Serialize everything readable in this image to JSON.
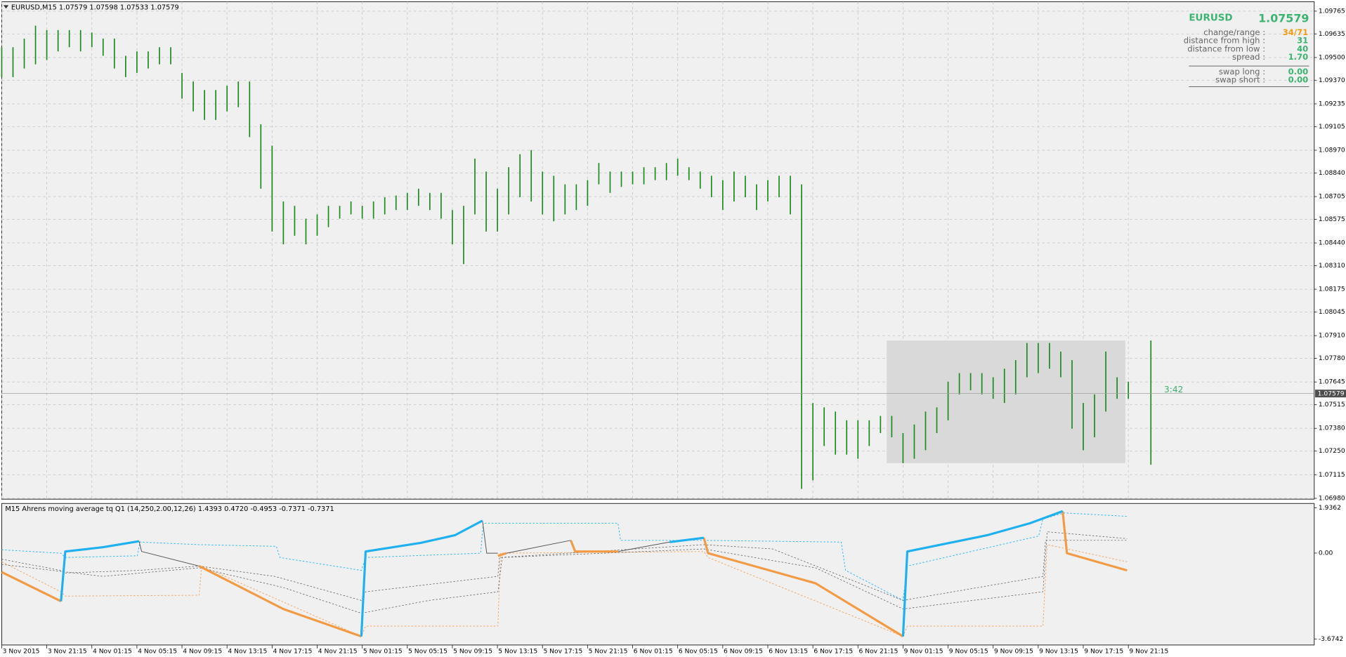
{
  "chart_data": [
    {
      "type": "ohlc",
      "title": "EURUSD,M15  1.07579 1.07598 1.07533 1.07579",
      "color": "#1f8a1f",
      "grid": true,
      "xlim": [
        0,
        116.5
      ],
      "ylim": [
        1.06975,
        1.09819
      ],
      "yticks": [
        1.09765,
        1.09635,
        {
          "value": 1.095,
          "label": "1.09500"
        },
        {
          "value": 1.0937,
          "label": "1.09370"
        },
        1.09235,
        1.09105,
        {
          "value": 1.0897,
          "label": "1.08970"
        },
        {
          "value": 1.0884,
          "label": "1.08840"
        },
        1.08705,
        1.08575,
        {
          "value": 1.0844,
          "label": "1.08440"
        },
        {
          "value": 1.0831,
          "label": "1.08310"
        },
        1.08175,
        1.08045,
        {
          "value": 1.0791,
          "label": "1.07910"
        },
        {
          "value": 1.0778,
          "label": "1.07780"
        },
        1.07645,
        1.07515,
        {
          "value": 1.0738,
          "label": "1.07380"
        },
        {
          "value": 1.0725,
          "label": "1.07250"
        },
        1.07115,
        {
          "value": 1.0698,
          "label": "1.06980"
        }
      ],
      "x": [
        0,
        1,
        2,
        3,
        4,
        5,
        6,
        7,
        8,
        9,
        10,
        11,
        12,
        13,
        14,
        15,
        16,
        17,
        18,
        19,
        20,
        21,
        22,
        23,
        24,
        25,
        26,
        27,
        28,
        29,
        30,
        31,
        32,
        33,
        34,
        35,
        36,
        37,
        38,
        39,
        40,
        41,
        42,
        43,
        44,
        45,
        46,
        47,
        48,
        49,
        50,
        51,
        52,
        53,
        54,
        55,
        56,
        57,
        58,
        59,
        60,
        61,
        62,
        63,
        64,
        65,
        66,
        67,
        68,
        69,
        70,
        71,
        72,
        73,
        74,
        75,
        76,
        77,
        78,
        79,
        80,
        81,
        82,
        83,
        84,
        85,
        86,
        87,
        88,
        89,
        90,
        91,
        92,
        93,
        94,
        95,
        96,
        97,
        98,
        99,
        100,
        102
      ],
      "high": [
        1.09559,
        1.09559,
        1.09608,
        1.09682,
        1.09657,
        1.09657,
        1.09657,
        1.09657,
        1.09643,
        1.09608,
        1.09608,
        1.0951,
        1.09535,
        1.09535,
        1.09559,
        1.09559,
        1.09412,
        1.09363,
        1.09314,
        1.09314,
        1.09339,
        1.09363,
        1.09363,
        1.09118,
        1.08996,
        1.08677,
        1.08652,
        1.08579,
        1.08603,
        1.08652,
        1.08652,
        1.08677,
        1.08652,
        1.08677,
        1.08701,
        1.08711,
        1.08726,
        1.0875,
        1.08726,
        1.08726,
        1.08628,
        1.08652,
        1.08922,
        1.08848,
        1.0875,
        1.08873,
        1.08947,
        1.08971,
        1.08848,
        1.08824,
        1.08775,
        1.08775,
        1.08799,
        1.08897,
        1.08848,
        1.08848,
        1.08848,
        1.08873,
        1.08873,
        1.08897,
        1.08922,
        1.08873,
        1.08848,
        1.08824,
        1.08799,
        1.08848,
        1.08824,
        1.08775,
        1.08799,
        1.08824,
        1.08824,
        1.08775,
        1.07525,
        1.075,
        1.07476,
        1.07426,
        1.07426,
        1.07426,
        1.07451,
        1.07451,
        1.07353,
        1.07402,
        1.07476,
        1.075,
        1.07647,
        1.07696,
        1.07696,
        1.07696,
        1.07672,
        1.07721,
        1.0777,
        1.07868,
        1.07868,
        1.07868,
        1.07819,
        1.0777,
        1.07525,
        1.07574,
        1.07819,
        1.07672,
        1.07647,
        1.07882
      ],
      "low": [
        1.09388,
        1.09388,
        1.09437,
        1.09461,
        1.09486,
        1.09535,
        1.09559,
        1.09535,
        1.09559,
        1.0951,
        1.09437,
        1.09388,
        1.09412,
        1.09437,
        1.09461,
        1.09461,
        1.09265,
        1.09192,
        1.09143,
        1.09143,
        1.09192,
        1.09216,
        1.09045,
        1.0875,
        1.08505,
        1.08432,
        1.08481,
        1.08432,
        1.08481,
        1.0853,
        1.08579,
        1.08603,
        1.08579,
        1.08579,
        1.08603,
        1.08628,
        1.08628,
        1.08652,
        1.08628,
        1.08579,
        1.08432,
        1.08319,
        1.08603,
        1.08505,
        1.08505,
        1.08603,
        1.08701,
        1.08677,
        1.08603,
        1.08564,
        1.08603,
        1.08628,
        1.08652,
        1.08775,
        1.08726,
        1.0876,
        1.08775,
        1.08775,
        1.08799,
        1.08799,
        1.08824,
        1.08799,
        1.0875,
        1.08701,
        1.08628,
        1.08677,
        1.08701,
        1.08628,
        1.08677,
        1.08701,
        1.08603,
        1.07034,
        1.07083,
        1.07279,
        1.0723,
        1.0723,
        1.07206,
        1.07279,
        1.07353,
        1.07329,
        1.07181,
        1.07206,
        1.07255,
        1.07353,
        1.07426,
        1.07574,
        1.07598,
        1.07574,
        1.07549,
        1.07525,
        1.07574,
        1.07672,
        1.07696,
        1.07721,
        1.07672,
        1.07378,
        1.07255,
        1.07329,
        1.07476,
        1.07549,
        1.07549,
        1.07172
      ],
      "current_price": 1.07579,
      "timer": "3:42",
      "highlight": {
        "xlim": [
          78.55,
          99.73
        ],
        "ylim": [
          1.07181,
          1.07882
        ],
        "color": "#d9d9d9"
      }
    },
    {
      "type": "line",
      "title": "M15 Ahrens moving average tq Q1 (14,250,2.00,12,26) 1.4393 0.4720 -0.4953 -0.7371 -0.7371",
      "xlim": [
        0,
        116.5
      ],
      "ylim": [
        -3.931,
        2.1196
      ],
      "yticks": [
        1.9362,
        {
          "value": 0,
          "label": "0.00"
        },
        -3.6742
      ],
      "xticks": [
        {
          "value": 0,
          "label": "3 Nov 2015"
        },
        {
          "value": 4,
          "label": "3 Nov 21:15"
        },
        {
          "value": 8,
          "label": "4 Nov 01:15"
        },
        {
          "value": 12,
          "label": "4 Nov 05:15"
        },
        {
          "value": 16,
          "label": "4 Nov 09:15"
        },
        {
          "value": 20,
          "label": "4 Nov 13:15"
        },
        {
          "value": 24,
          "label": "4 Nov 17:15"
        },
        {
          "value": 28,
          "label": "4 Nov 21:15"
        },
        {
          "value": 32,
          "label": "5 Nov 01:15"
        },
        {
          "value": 36,
          "label": "5 Nov 05:15"
        },
        {
          "value": 40,
          "label": "5 Nov 09:15"
        },
        {
          "value": 44,
          "label": "5 Nov 13:15"
        },
        {
          "value": 48,
          "label": "5 Nov 17:15"
        },
        {
          "value": 52,
          "label": "5 Nov 21:15"
        },
        {
          "value": 56,
          "label": "6 Nov 01:15"
        },
        {
          "value": 60,
          "label": "6 Nov 05:15"
        },
        {
          "value": 64,
          "label": "6 Nov 09:15"
        },
        {
          "value": 68,
          "label": "6 Nov 13:15"
        },
        {
          "value": 72,
          "label": "6 Nov 17:15"
        },
        {
          "value": 76,
          "label": "6 Nov 21:15"
        },
        {
          "value": 80,
          "label": "9 Nov 01:15"
        },
        {
          "value": 84,
          "label": "9 Nov 05:15"
        },
        {
          "value": 88,
          "label": "9 Nov 09:15"
        },
        {
          "value": 92,
          "label": "9 Nov 13:15"
        },
        {
          "value": 96,
          "label": "9 Nov 17:15"
        },
        {
          "value": 100,
          "label": "9 Nov 21:15"
        }
      ],
      "series": [
        {
          "color": "#29b6f6",
          "width": 0.8,
          "dashed": true,
          "x": [
            0,
            5.26,
            5.64,
            12.04,
            12.27,
            17.52,
            24.38,
            24.69,
            31.92,
            32.3,
            42.51,
            42.74,
            54.7,
            54.93,
            62.32,
            74.51,
            74.9,
            80.0,
            80.38,
            92.04,
            92.42,
            94.32,
            99.89
          ],
          "values": [
            0.139,
            -0.007,
            -0.191,
            -0.117,
            0.469,
            0.359,
            0.286,
            -0.191,
            -0.741,
            -0.191,
            -0.007,
            1.276,
            1.276,
            0.543,
            0.543,
            0.469,
            -0.741,
            -2.024,
            -0.557,
            0.726,
            1.459,
            1.716,
            1.569
          ]
        },
        {
          "color": "#f4a460",
          "width": 0.8,
          "dashed": true,
          "x": [
            0,
            5.26,
            5.64,
            17.52,
            17.75,
            31.92,
            32.3,
            44.04,
            44.27,
            62.32,
            62.7,
            80.0,
            80.38,
            92.42,
            92.8,
            99.89
          ],
          "values": [
            -0.374,
            -1.657,
            -1.841,
            -1.804,
            -0.557,
            -3.564,
            -3.124,
            -3.124,
            -0.007,
            0.066,
            -0.191,
            -3.564,
            -3.124,
            -3.124,
            0.359,
            -0.374
          ]
        },
        {
          "color": "#555555",
          "width": 0.6,
          "dashed": true,
          "x": [
            0,
            5.26,
            5.64,
            12.19,
            17.52,
            24.23,
            31.92,
            32.3,
            44.04,
            44.19,
            62.32,
            68.42,
            80.0,
            92.42,
            92.65,
            99.89
          ],
          "values": [
            -0.264,
            -0.741,
            -0.851,
            -0.741,
            -0.557,
            -0.998,
            -2.024,
            -1.657,
            -0.998,
            -0.191,
            0.359,
            0.176,
            -2.024,
            -0.998,
            0.543,
            0.543
          ]
        },
        {
          "color": "#555555",
          "width": 0.6,
          "dashed": true,
          "x": [
            0,
            8.99,
            17.52,
            24.99,
            31.92,
            37.94,
            44.04,
            44.42,
            62.32,
            72.23,
            80.0,
            92.42,
            92.8,
            99.89
          ],
          "values": [
            -0.484,
            -0.998,
            -0.631,
            -1.474,
            -2.574,
            -2.024,
            -1.657,
            -0.191,
            0.176,
            -0.631,
            -2.391,
            -1.657,
            0.909,
            0.616
          ]
        },
        {
          "color": "#555555",
          "width": 0.8,
          "x": [
            12.19,
            12.42,
            17.52
          ],
          "values": [
            0.506,
            0.066,
            -0.557
          ]
        },
        {
          "color": "#555555",
          "width": 0.8,
          "x": [
            42.67,
            43.05,
            44.04
          ],
          "values": [
            1.386,
            -0.007,
            -0.007
          ]
        },
        {
          "color": "#555555",
          "width": 0.8,
          "x": [
            44.8,
            50.51
          ],
          "values": [
            -0.007,
            0.543
          ]
        },
        {
          "color": "#555555",
          "width": 0.8,
          "x": [
            54.7,
            59.28
          ],
          "values": [
            0.066,
            0.469
          ]
        },
        {
          "color": "#f39a45",
          "width": 2.6,
          "x": [
            0,
            5.26
          ],
          "values": [
            -0.814,
            -2.061
          ]
        },
        {
          "color": "#f39a45",
          "width": 2.6,
          "x": [
            17.52,
            24.99,
            31.92
          ],
          "values": [
            -0.557,
            -2.391,
            -3.564
          ]
        },
        {
          "color": "#f39a45",
          "width": 2.6,
          "x": [
            44.04,
            44.8
          ],
          "values": [
            -0.117,
            -0.007
          ]
        },
        {
          "color": "#f39a45",
          "width": 2.6,
          "x": [
            50.51,
            50.9,
            54.7
          ],
          "values": [
            0.543,
            0.066,
            0.066
          ]
        },
        {
          "color": "#f39a45",
          "width": 2.6,
          "x": [
            62.32,
            62.7,
            72.23,
            80.0
          ],
          "values": [
            0.653,
            -0.007,
            -1.291,
            -3.564
          ]
        },
        {
          "color": "#f39a45",
          "width": 2.6,
          "x": [
            94.17,
            94.55,
            99.89
          ],
          "values": [
            1.79,
            -0.007,
            -0.741
          ]
        },
        {
          "color": "#1fb0f0",
          "width": 2.6,
          "x": [
            5.26,
            5.64,
            8.99,
            12.19
          ],
          "values": [
            -2.061,
            0.066,
            0.249,
            0.506
          ]
        },
        {
          "color": "#1fb0f0",
          "width": 2.6,
          "x": [
            31.92,
            32.3,
            37.18,
            40.23,
            42.67
          ],
          "values": [
            -3.564,
            0.066,
            0.433,
            0.763,
            1.386
          ]
        },
        {
          "color": "#1fb0f0",
          "width": 2.6,
          "x": [
            59.28,
            62.32
          ],
          "values": [
            0.469,
            0.653
          ]
        },
        {
          "color": "#1fb0f0",
          "width": 2.6,
          "x": [
            80.0,
            80.38,
            87.47,
            91.28,
            94.17
          ],
          "values": [
            -3.564,
            0.066,
            0.763,
            1.276,
            1.79
          ]
        }
      ]
    }
  ],
  "info_panel": {
    "symbol": "EURUSD",
    "price": "1.07579",
    "rows": [
      {
        "label": "change/range :",
        "value": "34/71",
        "color": "#f39c12"
      },
      {
        "label": "distance from high :",
        "value": "31",
        "color": "#3cb371"
      },
      {
        "label": "distance from low :",
        "value": "40",
        "color": "#3cb371"
      },
      {
        "label": "spread :",
        "value": "1.70",
        "color": "#3cb371"
      },
      {
        "label": "swap long :",
        "value": "0.00",
        "color": "#3cb371"
      },
      {
        "label": "swap short :",
        "value": "0.00",
        "color": "#3cb371"
      }
    ]
  }
}
